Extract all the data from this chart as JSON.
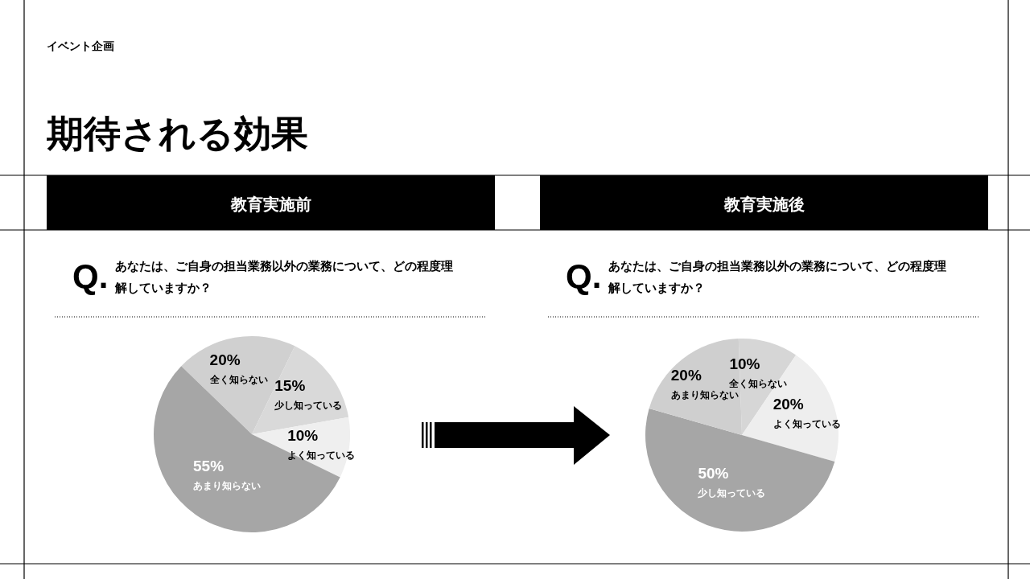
{
  "chart_data": [
    {
      "type": "other",
      "subtitle": "イベント企画",
      "title": "期待される効果"
    },
    {
      "type": "pie",
      "title": "教育実施前",
      "subtitle": "あなたは、ご自身の担当業務以外の業務について、どの程度理解していますか？",
      "annotations": [
        "Q."
      ],
      "categories": [
        "全く知らない",
        "少し知っている",
        "よく知っている",
        "あまり知らない"
      ],
      "values": [
        20,
        15,
        10,
        55
      ],
      "value_labels": [
        "20%",
        "15%",
        "10%",
        "55%"
      ],
      "colors": [
        "#d0d0d0",
        "#d9d9d9",
        "#efefef",
        "#a6a6a6"
      ]
    },
    {
      "type": "pie",
      "title": "教育実施後",
      "subtitle": "あなたは、ご自身の担当業務以外の業務について、どの程度理解していますか？",
      "annotations": [
        "Q."
      ],
      "categories": [
        "全く知らない",
        "よく知っている",
        "少し知っている",
        "あまり知らない"
      ],
      "values": [
        10,
        20,
        50,
        20
      ],
      "value_labels": [
        "10%",
        "20%",
        "50%",
        "20%"
      ],
      "colors": [
        "#d6d6d6",
        "#eeeeee",
        "#a6a6a6",
        "#cfcfcf"
      ]
    }
  ]
}
